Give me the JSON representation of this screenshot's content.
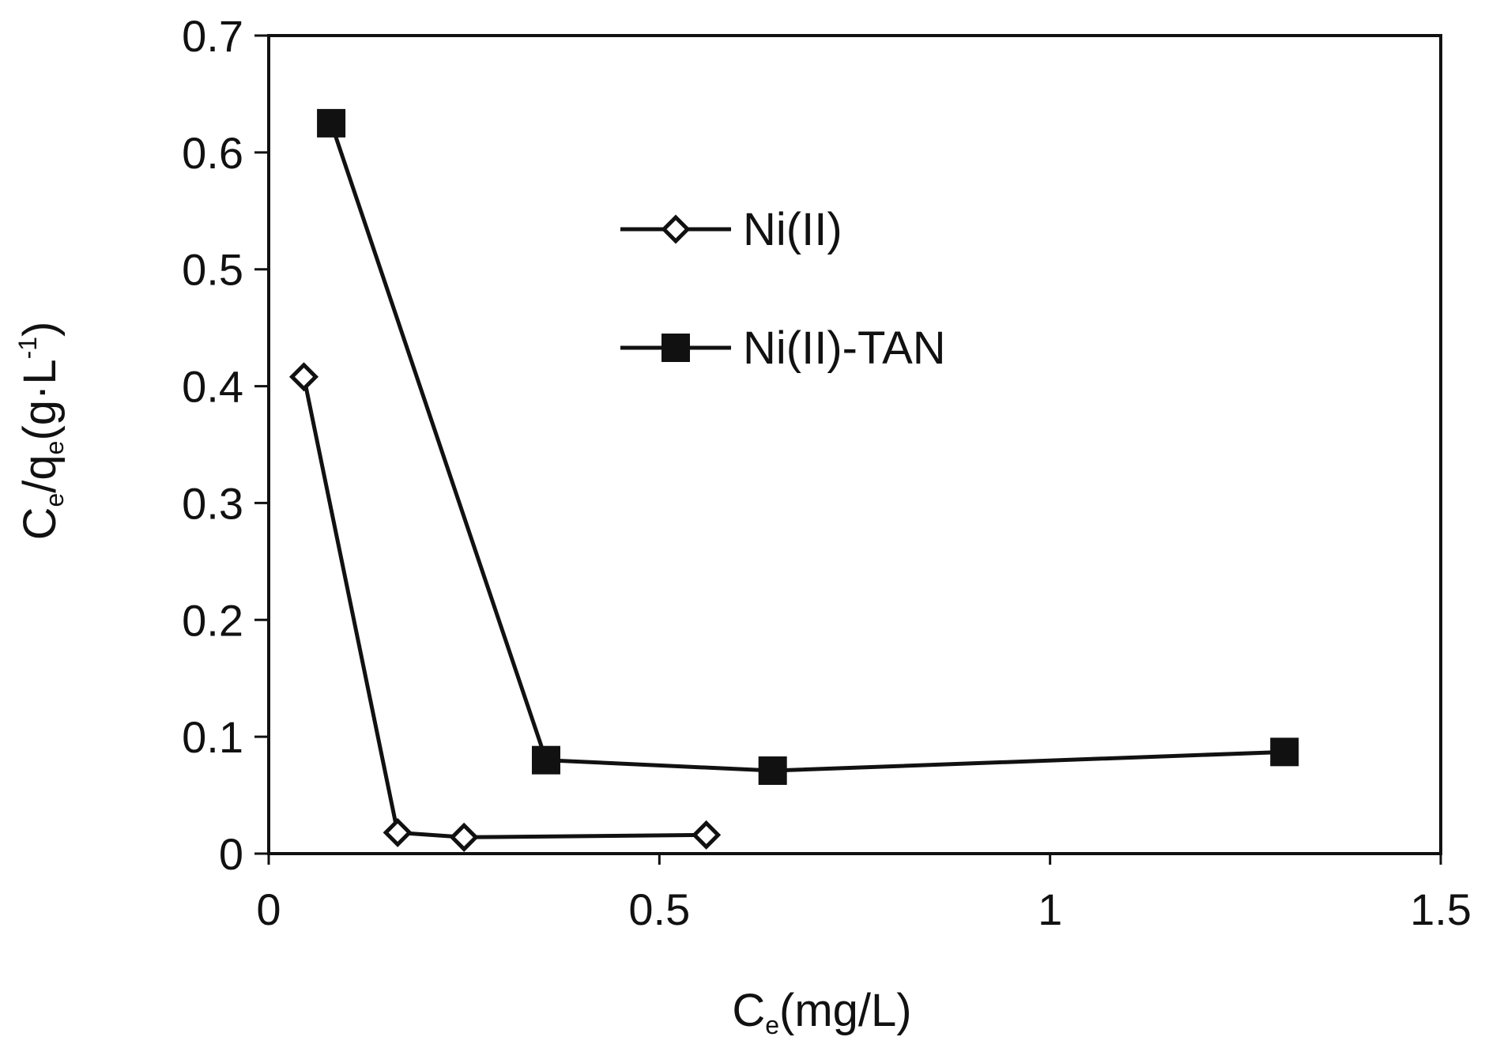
{
  "chart_data": {
    "type": "line",
    "xlabel": {
      "main": "C",
      "sub": "e",
      "rest": "(mg/L)"
    },
    "ylabel": {
      "c": "C",
      "e1": "e",
      "q": "/q",
      "e2": "e",
      "unit": "(g·L",
      "sup": "-1",
      "close": ")"
    },
    "xlim": [
      0,
      1.5
    ],
    "ylim": [
      0,
      0.7
    ],
    "xticks": [
      0,
      0.5,
      1,
      1.5
    ],
    "xtick_labels": [
      "0",
      "0.5",
      "1",
      "1.5"
    ],
    "yticks": [
      0,
      0.1,
      0.2,
      0.3,
      0.4,
      0.5,
      0.6,
      0.7
    ],
    "ytick_labels": [
      "0",
      "0.1",
      "0.2",
      "0.3",
      "0.4",
      "0.5",
      "0.6",
      "0.7"
    ],
    "grid": false,
    "legend_position": "upper-center",
    "series": [
      {
        "name": "Ni(II)",
        "marker": "open-diamond",
        "color": "#111111",
        "x": [
          0.045,
          0.165,
          0.25,
          0.56
        ],
        "y": [
          0.408,
          0.018,
          0.014,
          0.016
        ]
      },
      {
        "name": "Ni(II)-TAN",
        "marker": "filled-square",
        "color": "#111111",
        "x": [
          0.08,
          0.355,
          0.645,
          1.3
        ],
        "y": [
          0.625,
          0.08,
          0.071,
          0.087
        ]
      }
    ]
  }
}
